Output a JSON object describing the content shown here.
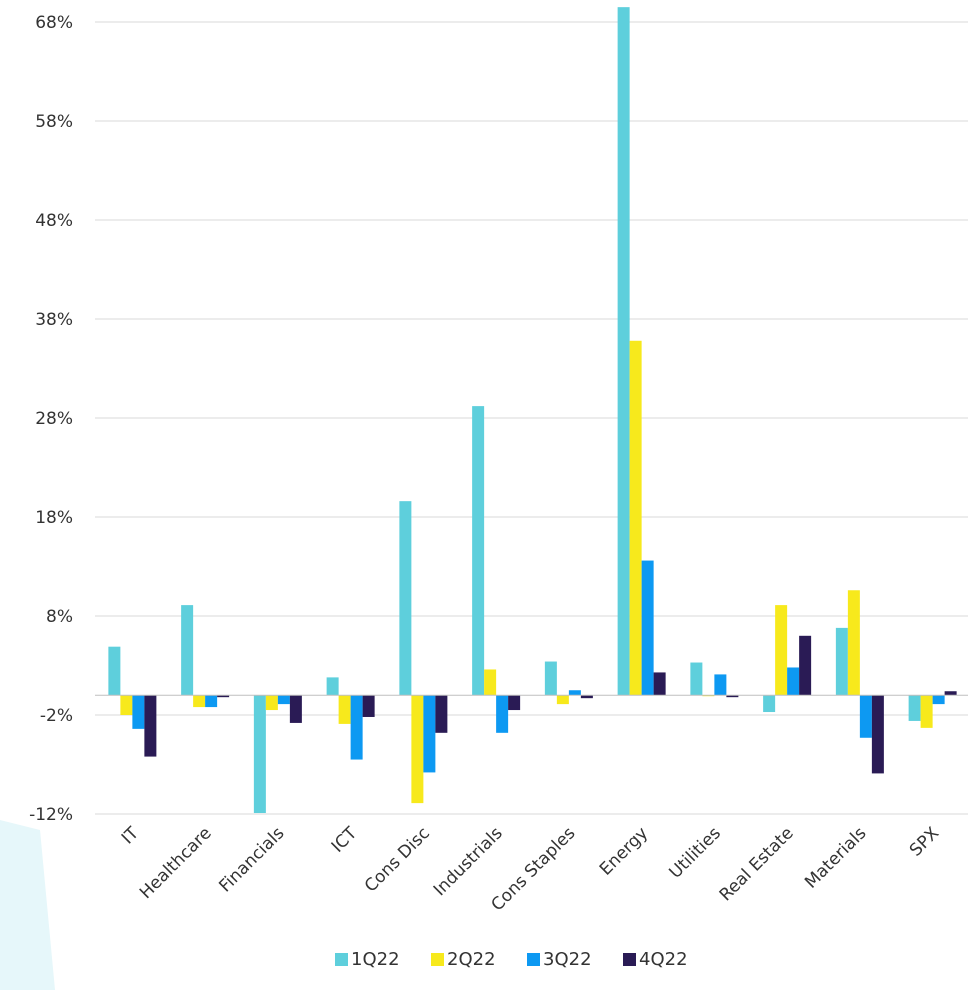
{
  "chart_data": {
    "type": "bar",
    "categories": [
      "IT",
      "Healthcare",
      "Financials",
      "ICT",
      "Cons Disc",
      "Industrials",
      "Cons Staples",
      "Energy",
      "Utilities",
      "Real Estate",
      "Materials",
      "SPX"
    ],
    "series": [
      {
        "name": "1Q22",
        "color": "#5ecfdc",
        "values": [
          4.9,
          9.1,
          -11.9,
          1.8,
          19.6,
          29.2,
          3.4,
          69.5,
          3.3,
          -1.7,
          6.8,
          -2.6
        ]
      },
      {
        "name": "2Q22",
        "color": "#f7e91c",
        "values": [
          -2.0,
          -1.2,
          -1.5,
          -2.9,
          -10.9,
          2.6,
          -0.9,
          35.8,
          -0.1,
          9.1,
          10.6,
          -3.3
        ]
      },
      {
        "name": "3Q22",
        "color": "#0d99f2",
        "values": [
          -3.4,
          -1.2,
          -0.9,
          -6.5,
          -7.8,
          -3.8,
          0.5,
          13.6,
          2.1,
          2.8,
          -4.3,
          -0.9
        ]
      },
      {
        "name": "4Q22",
        "color": "#2a1b55",
        "values": [
          -6.2,
          -0.2,
          -2.8,
          -2.2,
          -3.8,
          -1.5,
          -0.3,
          2.3,
          -0.2,
          6.0,
          -7.9,
          0.4
        ]
      }
    ],
    "ylim": [
      -12,
      69.8
    ],
    "yticks": [
      68,
      58,
      48,
      38,
      28,
      18,
      8,
      -2,
      -12
    ],
    "ytick_labels": [
      "68%",
      "58%",
      "48%",
      "38%",
      "28%",
      "18%",
      "8%",
      "-2%",
      "-12%"
    ],
    "grid": true,
    "legend_position": "bottom-center",
    "xtick_rotation": -45,
    "gridline_color": "#d9d9d9",
    "baseline_color": "#bfbfbf"
  },
  "background_accent_color": "#e6f7fa"
}
